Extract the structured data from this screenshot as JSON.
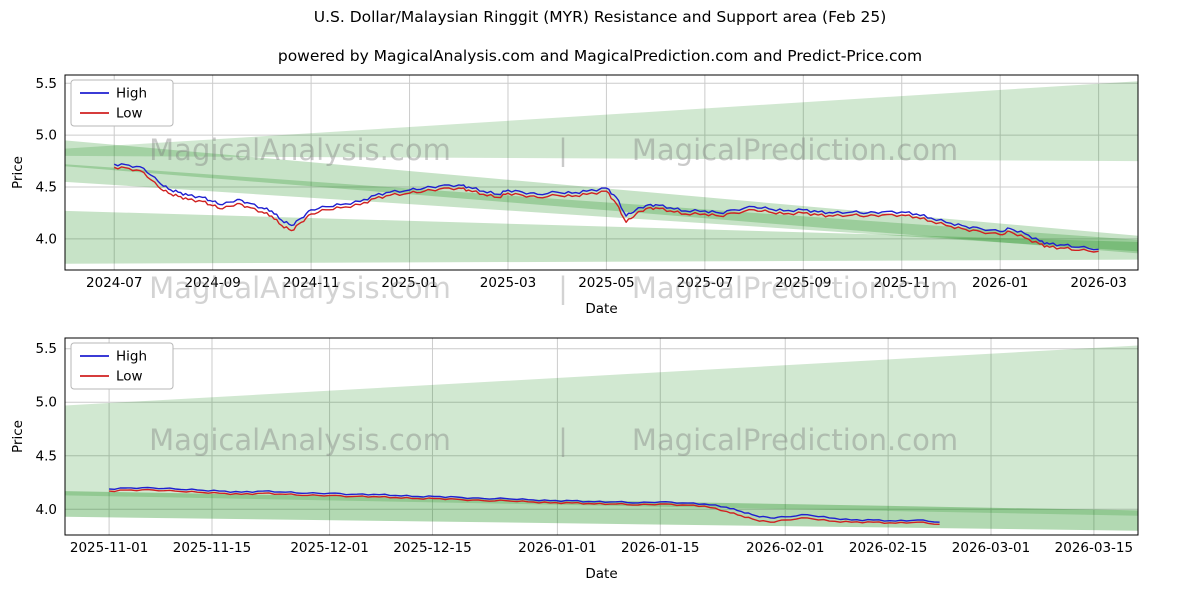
{
  "title": "U.S. Dollar/Malaysian Ringgit (MYR) Resistance and Support area (Feb 25)",
  "subtitle": "powered by MagicalAnalysis.com and MagicalPrediction.com and Predict-Price.com",
  "watermark": {
    "left": "MagicalAnalysis.com",
    "right": "MagicalPrediction.com",
    "separator": "|"
  },
  "colors": {
    "high": "#1f1fd0",
    "low": "#d02020",
    "band": "#008000",
    "grid": "#cccccc",
    "spine": "#000000",
    "watermark": "#808080",
    "text": "#000000"
  },
  "chart_data": [
    {
      "type": "line",
      "name": "full-history-chart",
      "xlabel": "Date",
      "ylabel": "Price",
      "xlim": [
        -1,
        20.8
      ],
      "ylim": [
        3.7,
        5.58
      ],
      "yticks": [
        4.0,
        4.5,
        5.0,
        5.5
      ],
      "ytick_labels": [
        "4.0",
        "4.5",
        "5.0",
        "5.5"
      ],
      "xticks": [
        0,
        2,
        4,
        6,
        8,
        10,
        12,
        14,
        16,
        18,
        20
      ],
      "xtick_labels": [
        "2024-07",
        "2024-09",
        "2024-11",
        "2025-01",
        "2025-03",
        "2025-05",
        "2025-07",
        "2025-09",
        "2025-11",
        "2026-01",
        "2026-03"
      ],
      "legend": [
        {
          "label": "High",
          "color": "#1f1fd0"
        },
        {
          "label": "Low",
          "color": "#d02020"
        }
      ],
      "x": [
        0,
        0.3,
        0.6,
        0.9,
        1.1,
        1.3,
        1.5,
        1.8,
        2.0,
        2.2,
        2.5,
        2.7,
        3.0,
        3.2,
        3.4,
        3.6,
        3.8,
        4.0,
        4.3,
        4.6,
        5.0,
        5.3,
        5.6,
        6.0,
        6.3,
        6.6,
        7.0,
        7.2,
        7.5,
        7.8,
        8.0,
        8.3,
        8.6,
        9.0,
        9.3,
        9.6,
        10.0,
        10.2,
        10.4,
        10.6,
        10.8,
        11.0,
        11.3,
        11.6,
        12.0,
        12.3,
        12.6,
        13.0,
        13.3,
        13.6,
        14.0,
        14.3,
        14.6,
        15.0,
        15.3,
        15.6,
        16.0,
        16.3,
        16.6,
        17.0,
        17.3,
        17.6,
        18.0,
        18.2,
        18.5,
        18.8,
        19.0,
        19.3,
        19.6,
        20.0
      ],
      "series": [
        {
          "name": "High",
          "color": "#1f1fd0",
          "values": [
            4.72,
            4.71,
            4.68,
            4.55,
            4.48,
            4.45,
            4.42,
            4.4,
            4.36,
            4.33,
            4.38,
            4.35,
            4.3,
            4.27,
            4.18,
            4.13,
            4.2,
            4.28,
            4.31,
            4.33,
            4.36,
            4.42,
            4.45,
            4.47,
            4.49,
            4.51,
            4.52,
            4.5,
            4.46,
            4.43,
            4.47,
            4.45,
            4.43,
            4.45,
            4.44,
            4.46,
            4.49,
            4.4,
            4.22,
            4.28,
            4.32,
            4.33,
            4.3,
            4.27,
            4.27,
            4.25,
            4.28,
            4.31,
            4.29,
            4.27,
            4.28,
            4.26,
            4.25,
            4.26,
            4.25,
            4.26,
            4.26,
            4.24,
            4.2,
            4.15,
            4.12,
            4.1,
            4.07,
            4.1,
            4.05,
            3.98,
            3.95,
            3.94,
            3.92,
            3.9
          ]
        },
        {
          "name": "Low",
          "color": "#d02020",
          "values": [
            4.69,
            4.68,
            4.64,
            4.5,
            4.44,
            4.41,
            4.38,
            4.36,
            4.32,
            4.29,
            4.34,
            4.31,
            4.26,
            4.22,
            4.13,
            4.08,
            4.16,
            4.24,
            4.28,
            4.3,
            4.33,
            4.39,
            4.42,
            4.44,
            4.46,
            4.48,
            4.49,
            4.47,
            4.43,
            4.4,
            4.44,
            4.42,
            4.4,
            4.42,
            4.41,
            4.43,
            4.46,
            4.34,
            4.16,
            4.24,
            4.29,
            4.3,
            4.27,
            4.24,
            4.24,
            4.22,
            4.25,
            4.28,
            4.26,
            4.24,
            4.25,
            4.23,
            4.22,
            4.23,
            4.22,
            4.23,
            4.23,
            4.21,
            4.17,
            4.12,
            4.09,
            4.07,
            4.04,
            4.07,
            4.01,
            3.95,
            3.92,
            3.91,
            3.89,
            3.88
          ]
        }
      ],
      "bands": [
        {
          "x": [
            -1,
            20.8
          ],
          "lower": [
            4.7,
            3.86
          ],
          "upper": [
            4.95,
            4.03
          ],
          "opacity": 0.22
        },
        {
          "x": [
            -1,
            20.8
          ],
          "lower": [
            4.55,
            3.88
          ],
          "upper": [
            4.72,
            3.99
          ],
          "opacity": 0.22
        },
        {
          "x": [
            -1,
            20.8
          ],
          "lower": [
            4.8,
            4.75
          ],
          "upper": [
            4.87,
            5.52
          ],
          "opacity": 0.18
        },
        {
          "x": [
            -1,
            20.8
          ],
          "lower": [
            3.76,
            3.8
          ],
          "upper": [
            4.27,
            3.97
          ],
          "opacity": 0.22
        }
      ]
    },
    {
      "type": "line",
      "name": "recent-forecast-chart",
      "xlabel": "Date",
      "ylabel": "Price",
      "xlim": [
        -6,
        140
      ],
      "ylim": [
        3.76,
        5.6
      ],
      "yticks": [
        4.0,
        4.5,
        5.0,
        5.5
      ],
      "ytick_labels": [
        "4.0",
        "4.5",
        "5.0",
        "5.5"
      ],
      "xticks": [
        0,
        14,
        30,
        44,
        61,
        75,
        92,
        106,
        120,
        134
      ],
      "xtick_labels": [
        "2025-11-01",
        "2025-11-15",
        "2025-12-01",
        "2025-12-15",
        "2026-01-01",
        "2026-01-15",
        "2026-02-01",
        "2026-02-15",
        "2026-03-01",
        "2026-03-15"
      ],
      "legend": [
        {
          "label": "High",
          "color": "#1f1fd0"
        },
        {
          "label": "Low",
          "color": "#d02020"
        }
      ],
      "x": [
        0,
        3,
        6,
        9,
        12,
        15,
        18,
        21,
        24,
        27,
        30,
        33,
        36,
        39,
        42,
        45,
        48,
        51,
        54,
        57,
        60,
        63,
        66,
        69,
        72,
        75,
        78,
        81,
        84,
        86,
        88,
        90,
        92,
        95,
        98,
        101,
        104,
        107,
        110,
        113
      ],
      "series": [
        {
          "name": "High",
          "color": "#1f1fd0",
          "values": [
            4.19,
            4.2,
            4.2,
            4.19,
            4.18,
            4.17,
            4.16,
            4.17,
            4.16,
            4.15,
            4.15,
            4.14,
            4.14,
            4.13,
            4.12,
            4.12,
            4.11,
            4.1,
            4.1,
            4.09,
            4.08,
            4.08,
            4.07,
            4.07,
            4.06,
            4.07,
            4.06,
            4.05,
            4.02,
            3.98,
            3.94,
            3.92,
            3.93,
            3.95,
            3.92,
            3.9,
            3.9,
            3.89,
            3.9,
            3.88
          ]
        },
        {
          "name": "Low",
          "color": "#d02020",
          "values": [
            4.17,
            4.18,
            4.18,
            4.17,
            4.16,
            4.15,
            4.14,
            4.15,
            4.14,
            4.13,
            4.13,
            4.12,
            4.12,
            4.11,
            4.1,
            4.1,
            4.09,
            4.08,
            4.08,
            4.07,
            4.06,
            4.06,
            4.05,
            4.05,
            4.04,
            4.05,
            4.04,
            4.03,
            3.98,
            3.94,
            3.9,
            3.88,
            3.9,
            3.92,
            3.89,
            3.88,
            3.88,
            3.87,
            3.88,
            3.86
          ]
        }
      ],
      "bands": [
        {
          "x": [
            -6,
            140
          ],
          "lower": [
            4.13,
            3.94
          ],
          "upper": [
            4.97,
            5.53
          ],
          "opacity": 0.18
        },
        {
          "x": [
            -6,
            140
          ],
          "lower": [
            3.93,
            3.8
          ],
          "upper": [
            4.17,
            3.99
          ],
          "opacity": 0.3
        }
      ]
    }
  ]
}
